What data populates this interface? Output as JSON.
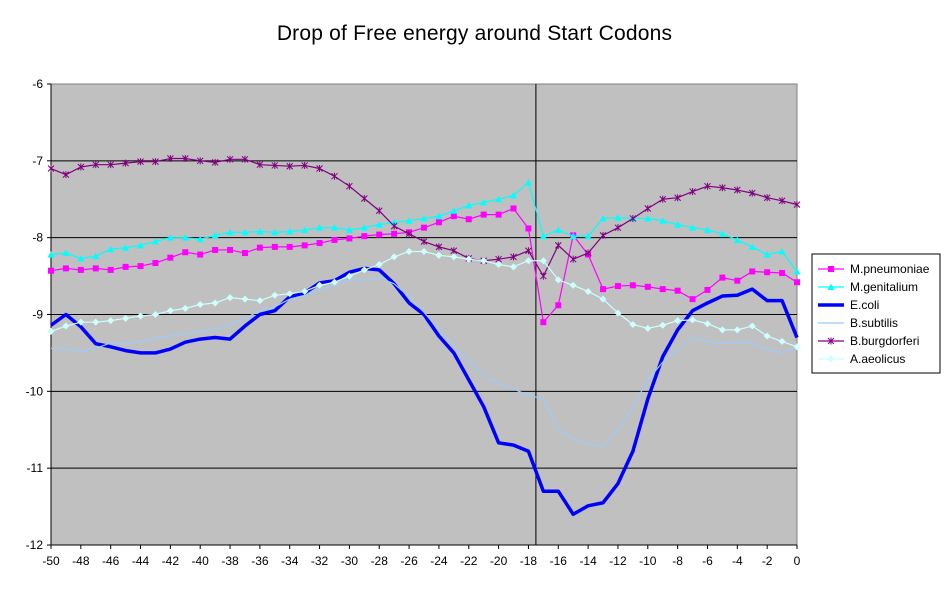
{
  "chart_data": {
    "type": "line",
    "title": "Drop of Free energy around Start Codons",
    "xlabel": "",
    "ylabel": "",
    "xlim": [
      -50,
      0
    ],
    "ylim": [
      -12,
      -6
    ],
    "x_ticks": [
      -50,
      -48,
      -46,
      -44,
      -42,
      -40,
      -38,
      -36,
      -34,
      -32,
      -30,
      -28,
      -26,
      -24,
      -22,
      -20,
      -18,
      -16,
      -14,
      -12,
      -10,
      -8,
      -6,
      -4,
      -2,
      0
    ],
    "y_ticks": [
      -6,
      -7,
      -8,
      -9,
      -10,
      -11,
      -12
    ],
    "grid": "horizontal",
    "background": "#c0c0c0",
    "reference_line_x": -17.5,
    "legend_position": "right",
    "x": [
      -50,
      -49,
      -48,
      -47,
      -46,
      -45,
      -44,
      -43,
      -42,
      -41,
      -40,
      -39,
      -38,
      -37,
      -36,
      -35,
      -34,
      -33,
      -32,
      -31,
      -30,
      -29,
      -28,
      -27,
      -26,
      -25,
      -24,
      -23,
      -22,
      -21,
      -20,
      -19,
      -18,
      -17,
      -16,
      -15,
      -14,
      -13,
      -12,
      -11,
      -10,
      -9,
      -8,
      -7,
      -6,
      -5,
      -4,
      -3,
      -2,
      -1,
      0
    ],
    "series": [
      {
        "name": "M.pneumoniae",
        "color": "#ff00ff",
        "marker": "square",
        "values": [
          -8.43,
          -8.4,
          -8.42,
          -8.4,
          -8.42,
          -8.38,
          -8.37,
          -8.33,
          -8.26,
          -8.19,
          -8.22,
          -8.16,
          -8.16,
          -8.2,
          -8.13,
          -8.12,
          -8.12,
          -8.1,
          -8.07,
          -8.03,
          -8.01,
          -7.98,
          -7.96,
          -7.95,
          -7.93,
          -7.87,
          -7.8,
          -7.72,
          -7.76,
          -7.7,
          -7.7,
          -7.62,
          -7.88,
          -9.1,
          -8.88,
          -7.97,
          -8.22,
          -8.67,
          -8.63,
          -8.62,
          -8.64,
          -8.67,
          -8.69,
          -8.8,
          -8.68,
          -8.52,
          -8.56,
          -8.44,
          -8.45,
          -8.46,
          -8.58
        ]
      },
      {
        "name": "M.genitalium",
        "color": "#00ffff",
        "marker": "triangle",
        "values": [
          -8.22,
          -8.2,
          -8.27,
          -8.24,
          -8.15,
          -8.13,
          -8.1,
          -8.05,
          -8.0,
          -8.0,
          -8.02,
          -7.97,
          -7.93,
          -7.93,
          -7.92,
          -7.93,
          -7.92,
          -7.9,
          -7.87,
          -7.87,
          -7.9,
          -7.87,
          -7.83,
          -7.8,
          -7.78,
          -7.75,
          -7.72,
          -7.65,
          -7.58,
          -7.54,
          -7.5,
          -7.45,
          -7.28,
          -7.98,
          -7.9,
          -7.98,
          -7.98,
          -7.75,
          -7.74,
          -7.75,
          -7.75,
          -7.78,
          -7.83,
          -7.87,
          -7.9,
          -7.95,
          -8.03,
          -8.12,
          -8.22,
          -8.18,
          -8.44
        ]
      },
      {
        "name": "E.coli",
        "color": "#0000ff",
        "marker": "none",
        "values": [
          -9.14,
          -9.0,
          -9.16,
          -9.38,
          -9.42,
          -9.47,
          -9.5,
          -9.5,
          -9.45,
          -9.36,
          -9.32,
          -9.3,
          -9.32,
          -9.15,
          -9.0,
          -8.95,
          -8.77,
          -8.72,
          -8.59,
          -8.56,
          -8.45,
          -8.4,
          -8.42,
          -8.6,
          -8.85,
          -9.0,
          -9.28,
          -9.5,
          -9.85,
          -10.2,
          -10.67,
          -10.7,
          -10.78,
          -11.3,
          -11.3,
          -11.6,
          -11.49,
          -11.45,
          -11.2,
          -10.78,
          -10.1,
          -9.55,
          -9.2,
          -8.95,
          -8.85,
          -8.76,
          -8.75,
          -8.67,
          -8.82,
          -8.82,
          -9.3
        ]
      },
      {
        "name": "B.subtilis",
        "color": "#99ccff",
        "marker": "none",
        "values": [
          -9.44,
          -9.45,
          -9.48,
          -9.44,
          -9.37,
          -9.38,
          -9.35,
          -9.3,
          -9.28,
          -9.25,
          -9.22,
          -9.2,
          -9.13,
          -9.05,
          -8.95,
          -8.9,
          -8.8,
          -8.75,
          -8.68,
          -8.62,
          -8.55,
          -8.55,
          -8.52,
          -8.6,
          -8.77,
          -8.97,
          -9.2,
          -9.4,
          -9.6,
          -9.8,
          -9.9,
          -9.97,
          -10.05,
          -10.1,
          -10.5,
          -10.62,
          -10.68,
          -10.72,
          -10.5,
          -10.2,
          -9.85,
          -9.62,
          -9.45,
          -9.3,
          -9.35,
          -9.38,
          -9.36,
          -9.37,
          -9.45,
          -9.5,
          -9.42
        ]
      },
      {
        "name": "B.burgdorferi",
        "color": "#800080",
        "marker": "star",
        "values": [
          -7.1,
          -7.18,
          -7.08,
          -7.05,
          -7.05,
          -7.03,
          -7.01,
          -7.01,
          -6.97,
          -6.97,
          -7.0,
          -7.02,
          -6.98,
          -6.98,
          -7.05,
          -7.06,
          -7.07,
          -7.06,
          -7.1,
          -7.2,
          -7.33,
          -7.49,
          -7.65,
          -7.85,
          -7.95,
          -8.05,
          -8.12,
          -8.17,
          -8.27,
          -8.3,
          -8.28,
          -8.25,
          -8.17,
          -8.5,
          -8.1,
          -8.28,
          -8.2,
          -7.97,
          -7.87,
          -7.75,
          -7.62,
          -7.5,
          -7.48,
          -7.4,
          -7.33,
          -7.35,
          -7.38,
          -7.42,
          -7.48,
          -7.52,
          -7.57
        ]
      },
      {
        "name": "A.aeolicus",
        "color": "#ccffff",
        "marker": "diamond",
        "values": [
          -9.22,
          -9.15,
          -9.1,
          -9.1,
          -9.08,
          -9.05,
          -9.02,
          -9.0,
          -8.95,
          -8.92,
          -8.87,
          -8.85,
          -8.78,
          -8.8,
          -8.82,
          -8.75,
          -8.73,
          -8.7,
          -8.62,
          -8.58,
          -8.5,
          -8.42,
          -8.35,
          -8.25,
          -8.18,
          -8.18,
          -8.23,
          -8.25,
          -8.28,
          -8.3,
          -8.35,
          -8.38,
          -8.3,
          -8.3,
          -8.55,
          -8.62,
          -8.7,
          -8.8,
          -8.98,
          -9.13,
          -9.18,
          -9.14,
          -9.08,
          -9.07,
          -9.12,
          -9.2,
          -9.2,
          -9.15,
          -9.28,
          -9.35,
          -9.42
        ]
      }
    ]
  }
}
